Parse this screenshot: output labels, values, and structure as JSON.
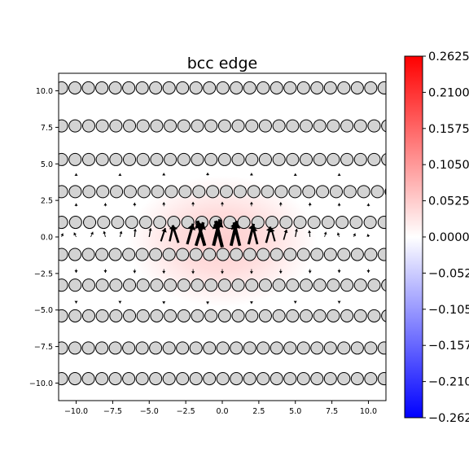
{
  "chart_data": {
    "type": "heatmap",
    "title": "bcc edge",
    "xlabel": "",
    "ylabel": "",
    "xlim": [
      -11.2,
      11.2
    ],
    "ylim": [
      -11.2,
      11.2
    ],
    "x_ticks": [
      -10.0,
      -7.5,
      -5.0,
      -2.5,
      0.0,
      2.5,
      5.0,
      7.5,
      10.0
    ],
    "y_ticks": [
      -10.0,
      -7.5,
      -5.0,
      -2.5,
      0.0,
      2.5,
      5.0,
      7.5,
      10.0
    ],
    "x_tick_labels": [
      "−10.0",
      "−7.5",
      "−5.0",
      "−2.5",
      "0.0",
      "2.5",
      "5.0",
      "7.5",
      "10.0"
    ],
    "y_tick_labels": [
      "10.0",
      "7.5",
      "5.0",
      "2.5",
      "0.0",
      "−2.5",
      "−5.0",
      "−7.5",
      "−10.0"
    ],
    "grid": false,
    "colormap": "bwr",
    "colorbar": {
      "range": [
        -0.2625,
        0.2625
      ],
      "ticks": [
        0.2625,
        0.21,
        0.1575,
        0.105,
        0.0525,
        0.0,
        -0.0525,
        -0.105,
        -0.1575,
        -0.21,
        -0.2625
      ],
      "tick_labels": [
        "0.2625",
        "0.2100",
        "0.1575",
        "0.1050",
        "0.0525",
        "0.0000",
        "−0.0525",
        "−0.1050",
        "−0.1575",
        "−0.2100",
        "−0.2625"
      ],
      "colors": {
        "min": "#0000ff",
        "mid": "#ffffff",
        "max": "#ff0000"
      }
    },
    "field_max_value": 0.05,
    "field_center": [
      0.0,
      -0.3
    ],
    "atom_rows": [
      {
        "y": 10.2,
        "x_start": -11.0,
        "spacing": 0.92
      },
      {
        "y": 7.6,
        "x_start": -11.0,
        "spacing": 0.93
      },
      {
        "y": 5.3,
        "x_start": -11.0,
        "spacing": 0.93
      },
      {
        "y": 3.1,
        "x_start": -11.0,
        "spacing": 0.94
      },
      {
        "y": 1.0,
        "x_start": -11.0,
        "spacing": 0.96
      },
      {
        "y": -1.2,
        "x_start": -11.0,
        "spacing": 0.92
      },
      {
        "y": -3.3,
        "x_start": -11.0,
        "spacing": 0.93
      },
      {
        "y": -5.4,
        "x_start": -11.0,
        "spacing": 0.93
      },
      {
        "y": -7.6,
        "x_start": -11.0,
        "spacing": 0.92
      },
      {
        "y": -9.7,
        "x_start": -11.0,
        "spacing": 0.92
      }
    ],
    "atom_style": {
      "fill": "#d3d3d3",
      "stroke": "#000000"
    },
    "displacement_arrows": [
      {
        "x": -11.0,
        "y": 0.0,
        "dx": 0.1,
        "dy": 0.25
      },
      {
        "x": -10.0,
        "y": 0.0,
        "dx": -0.15,
        "dy": 0.3
      },
      {
        "x": -9.0,
        "y": 0.0,
        "dx": 0.15,
        "dy": 0.35
      },
      {
        "x": -8.0,
        "y": 0.0,
        "dx": -0.1,
        "dy": 0.4
      },
      {
        "x": -7.0,
        "y": 0.0,
        "dx": 0.1,
        "dy": 0.4
      },
      {
        "x": -6.0,
        "y": 0.0,
        "dx": 0.05,
        "dy": 0.55
      },
      {
        "x": -5.0,
        "y": 0.0,
        "dx": 0.1,
        "dy": 0.6
      },
      {
        "x": -4.2,
        "y": -0.3,
        "dx": 0.3,
        "dy": 0.9
      },
      {
        "x": -3.6,
        "y": -0.3,
        "dx": 0.25,
        "dy": 1.1
      },
      {
        "x": -3.0,
        "y": -0.4,
        "dx": -0.4,
        "dy": 1.2
      },
      {
        "x": -2.4,
        "y": -0.5,
        "dx": 0.4,
        "dy": 1.4
      },
      {
        "x": -1.8,
        "y": -0.6,
        "dx": 0.5,
        "dy": 1.6
      },
      {
        "x": -1.2,
        "y": -0.6,
        "dx": -0.5,
        "dy": 1.7
      },
      {
        "x": -0.6,
        "y": -0.6,
        "dx": 0.45,
        "dy": 1.8
      },
      {
        "x": 0.0,
        "y": -0.7,
        "dx": -0.45,
        "dy": 1.8
      },
      {
        "x": 0.6,
        "y": -0.6,
        "dx": 0.4,
        "dy": 1.7
      },
      {
        "x": 1.2,
        "y": -0.6,
        "dx": -0.4,
        "dy": 1.6
      },
      {
        "x": 1.8,
        "y": -0.5,
        "dx": 0.35,
        "dy": 1.4
      },
      {
        "x": 2.4,
        "y": -0.5,
        "dx": -0.3,
        "dy": 1.2
      },
      {
        "x": 3.0,
        "y": -0.4,
        "dx": 0.3,
        "dy": 1.1
      },
      {
        "x": 3.6,
        "y": -0.3,
        "dx": -0.25,
        "dy": 0.9
      },
      {
        "x": 4.2,
        "y": -0.2,
        "dx": 0.2,
        "dy": 0.7
      },
      {
        "x": 5.0,
        "y": 0.0,
        "dx": 0.1,
        "dy": 0.55
      },
      {
        "x": 6.0,
        "y": 0.0,
        "dx": -0.05,
        "dy": 0.45
      },
      {
        "x": 7.0,
        "y": 0.0,
        "dx": 0.1,
        "dy": 0.35
      },
      {
        "x": 8.0,
        "y": 0.0,
        "dx": -0.1,
        "dy": 0.3
      },
      {
        "x": 9.0,
        "y": 0.0,
        "dx": 0.1,
        "dy": 0.25
      },
      {
        "x": 10.0,
        "y": 0.0,
        "dx": -0.05,
        "dy": 0.2
      },
      {
        "x": -10.0,
        "y": 2.1,
        "dx": 0.0,
        "dy": 0.2
      },
      {
        "x": -8.0,
        "y": 2.1,
        "dx": 0.0,
        "dy": 0.22
      },
      {
        "x": -6.0,
        "y": 2.1,
        "dx": 0.0,
        "dy": 0.25
      },
      {
        "x": -4.0,
        "y": 2.1,
        "dx": 0.0,
        "dy": 0.28
      },
      {
        "x": -2.0,
        "y": 2.1,
        "dx": 0.0,
        "dy": 0.3
      },
      {
        "x": 0.0,
        "y": 2.1,
        "dx": 0.0,
        "dy": 0.3
      },
      {
        "x": 2.0,
        "y": 2.1,
        "dx": 0.0,
        "dy": 0.3
      },
      {
        "x": 4.0,
        "y": 2.1,
        "dx": 0.0,
        "dy": 0.28
      },
      {
        "x": 6.0,
        "y": 2.1,
        "dx": 0.0,
        "dy": 0.25
      },
      {
        "x": 8.0,
        "y": 2.1,
        "dx": 0.0,
        "dy": 0.22
      },
      {
        "x": 10.0,
        "y": 2.1,
        "dx": 0.0,
        "dy": 0.2
      },
      {
        "x": -10.0,
        "y": 4.2,
        "dx": 0.0,
        "dy": 0.15
      },
      {
        "x": -7.0,
        "y": 4.2,
        "dx": 0.0,
        "dy": 0.15
      },
      {
        "x": -4.0,
        "y": 4.2,
        "dx": 0.0,
        "dy": 0.18
      },
      {
        "x": -1.0,
        "y": 4.2,
        "dx": 0.0,
        "dy": 0.2
      },
      {
        "x": 2.0,
        "y": 4.2,
        "dx": 0.0,
        "dy": 0.18
      },
      {
        "x": 5.0,
        "y": 4.2,
        "dx": 0.0,
        "dy": 0.15
      },
      {
        "x": 8.0,
        "y": 4.2,
        "dx": 0.0,
        "dy": 0.15
      },
      {
        "x": -10.0,
        "y": -2.2,
        "dx": 0.0,
        "dy": -0.25
      },
      {
        "x": -8.0,
        "y": -2.2,
        "dx": 0.0,
        "dy": -0.25
      },
      {
        "x": -6.0,
        "y": -2.2,
        "dx": 0.0,
        "dy": -0.28
      },
      {
        "x": -4.0,
        "y": -2.2,
        "dx": 0.0,
        "dy": -0.3
      },
      {
        "x": -2.0,
        "y": -2.2,
        "dx": 0.0,
        "dy": -0.32
      },
      {
        "x": 0.0,
        "y": -2.2,
        "dx": 0.0,
        "dy": -0.32
      },
      {
        "x": 2.0,
        "y": -2.2,
        "dx": 0.0,
        "dy": -0.32
      },
      {
        "x": 4.0,
        "y": -2.2,
        "dx": 0.0,
        "dy": -0.3
      },
      {
        "x": 6.0,
        "y": -2.2,
        "dx": 0.0,
        "dy": -0.28
      },
      {
        "x": 8.0,
        "y": -2.2,
        "dx": 0.0,
        "dy": -0.25
      },
      {
        "x": 10.0,
        "y": -2.2,
        "dx": 0.0,
        "dy": -0.25
      },
      {
        "x": -10.0,
        "y": -4.4,
        "dx": 0.0,
        "dy": -0.15
      },
      {
        "x": -7.0,
        "y": -4.4,
        "dx": 0.0,
        "dy": -0.15
      },
      {
        "x": -4.0,
        "y": -4.4,
        "dx": 0.0,
        "dy": -0.18
      },
      {
        "x": -1.0,
        "y": -4.4,
        "dx": 0.0,
        "dy": -0.2
      },
      {
        "x": 2.0,
        "y": -4.4,
        "dx": 0.0,
        "dy": -0.18
      },
      {
        "x": 5.0,
        "y": -4.4,
        "dx": 0.0,
        "dy": -0.15
      },
      {
        "x": 8.0,
        "y": -4.4,
        "dx": 0.0,
        "dy": -0.15
      }
    ]
  }
}
